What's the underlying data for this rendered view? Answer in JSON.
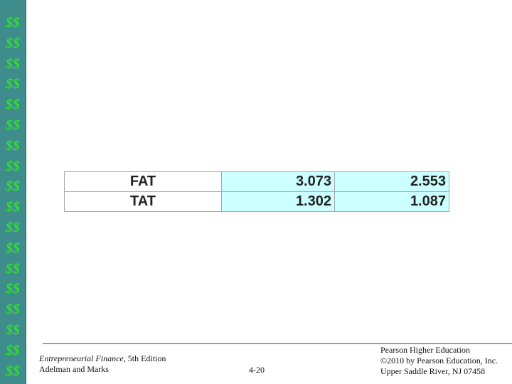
{
  "sidebar": [
    "$$",
    "$$",
    "$$",
    "$$",
    "$$",
    "$$",
    "$$",
    "$$",
    "$$",
    "$$",
    "$$",
    "$$",
    "$$",
    "$$",
    "$$",
    "$$",
    "$$",
    "$$"
  ],
  "table": {
    "rows": [
      [
        "FAT",
        "3.073",
        "2.553"
      ],
      [
        "TAT",
        "1.302",
        "1.087"
      ]
    ]
  },
  "footer": {
    "book_title": "Entrepreneurial Finance",
    "edition": ", 5th Edition",
    "authors": "Adelman and Marks",
    "page": "4-20",
    "publisher": [
      "Pearson Higher Education",
      "©2010 by Pearson Education, Inc.",
      "Upper Saddle River, NJ 07458"
    ]
  }
}
